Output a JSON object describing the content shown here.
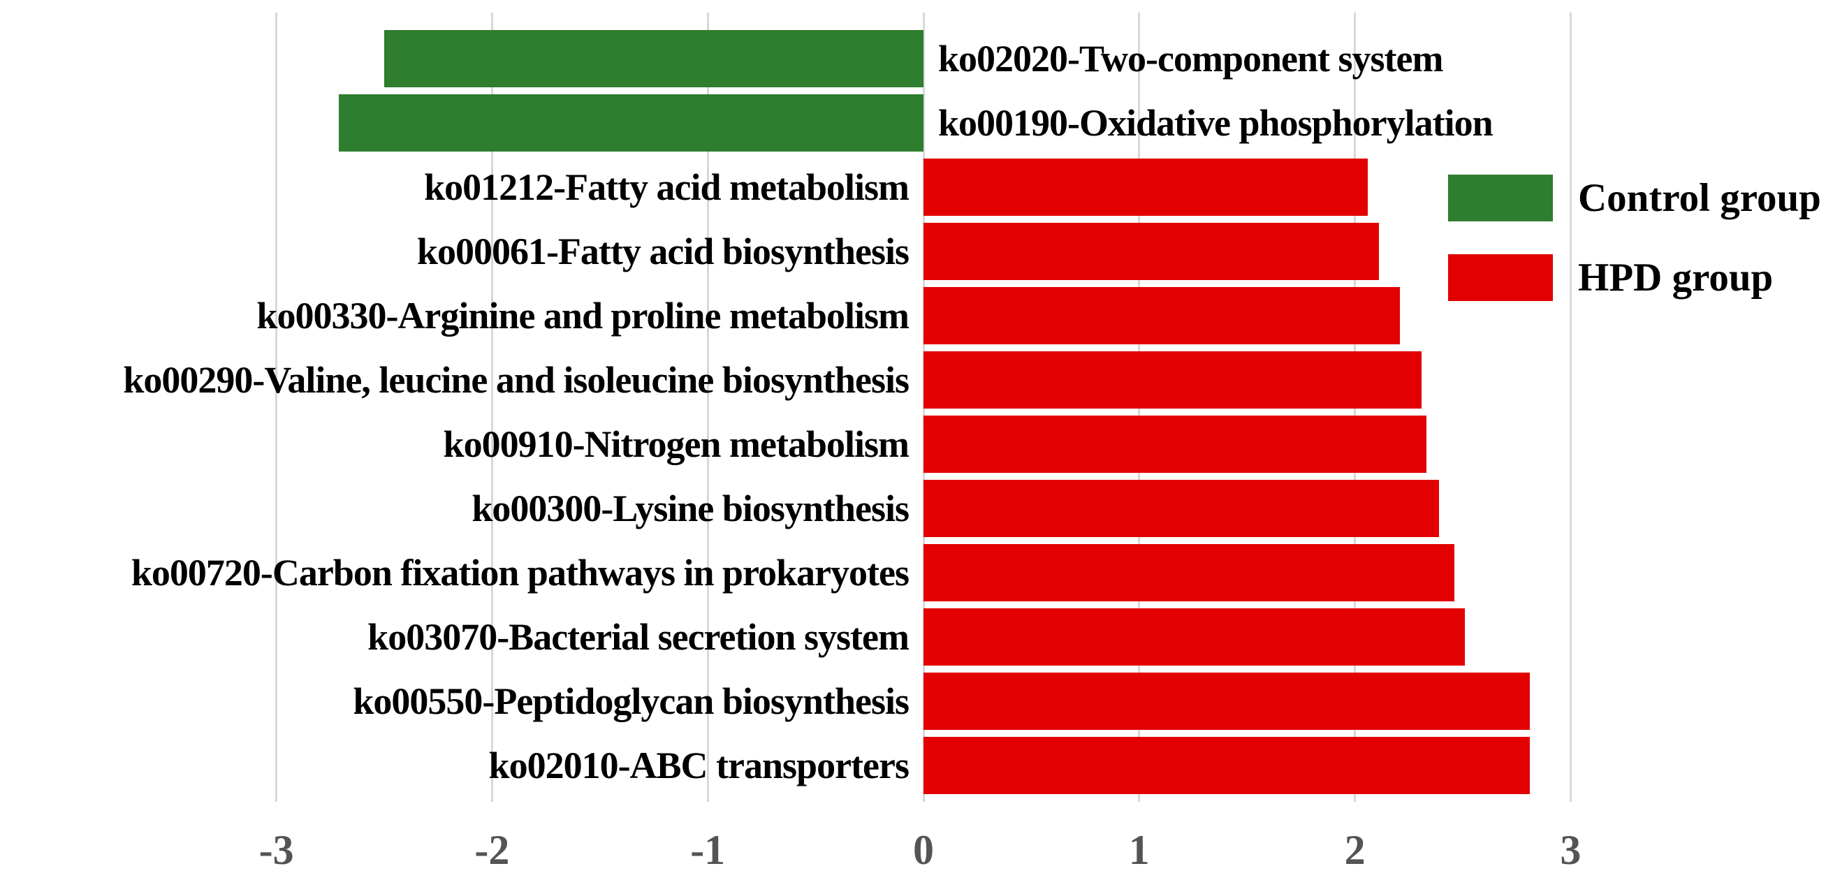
{
  "chart_data": {
    "type": "bar",
    "orientation": "horizontal-diverging",
    "title": "",
    "xlabel": "",
    "ylabel": "",
    "axis": {
      "min": -3,
      "max": 3,
      "tick_values": [
        -3,
        -2,
        -1,
        0,
        1,
        2,
        3
      ],
      "tick_labels": [
        "-3",
        "-2",
        "-1",
        "0",
        "1",
        "2",
        "3"
      ],
      "grid": true
    },
    "bars": [
      {
        "label": "ko02020-Two-component system",
        "value": -2.5,
        "group": "Control group"
      },
      {
        "label": "ko00190-Oxidative phosphorylation",
        "value": -2.71,
        "group": "Control group"
      },
      {
        "label": "ko01212-Fatty acid metabolism",
        "value": 2.06,
        "group": "HPD group"
      },
      {
        "label": "ko00061-Fatty acid biosynthesis",
        "value": 2.11,
        "group": "HPD group"
      },
      {
        "label": "ko00330-Arginine and proline metabolism",
        "value": 2.21,
        "group": "HPD group"
      },
      {
        "label": "ko00290-Valine, leucine and isoleucine biosynthesis",
        "value": 2.31,
        "group": "HPD group"
      },
      {
        "label": "ko00910-Nitrogen metabolism",
        "value": 2.33,
        "group": "HPD group"
      },
      {
        "label": "ko00300-Lysine biosynthesis",
        "value": 2.39,
        "group": "HPD group"
      },
      {
        "label": "ko00720-Carbon fixation pathways in prokaryotes",
        "value": 2.46,
        "group": "HPD group"
      },
      {
        "label": "ko03070-Bacterial secretion system",
        "value": 2.51,
        "group": "HPD group"
      },
      {
        "label": "ko00550-Peptidoglycan biosynthesis",
        "value": 2.81,
        "group": "HPD group"
      },
      {
        "label": "ko02010-ABC transporters",
        "value": 2.81,
        "group": "HPD group"
      }
    ],
    "legend": {
      "position": "upper-right",
      "entries": [
        {
          "label": "Control group",
          "color": "#2f7d2e"
        },
        {
          "label": "HPD group",
          "color": "#e20000"
        }
      ]
    }
  },
  "legend": {
    "control_label": "Control group",
    "hpd_label": "HPD group"
  },
  "colors": {
    "control": "#2f7d2e",
    "hpd": "#e20000",
    "grid": "#d8d8d8",
    "tick_text": "#545454"
  }
}
